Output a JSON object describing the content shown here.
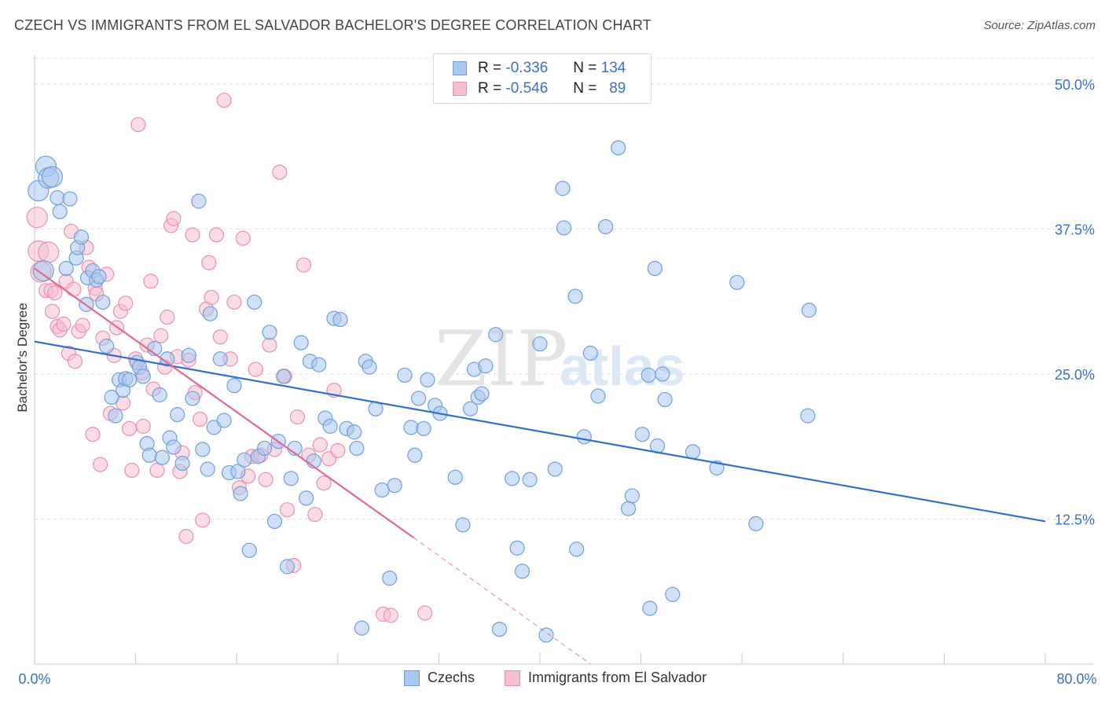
{
  "title": "CZECH VS IMMIGRANTS FROM EL SALVADOR BACHELOR'S DEGREE CORRELATION CHART",
  "source": "Source: ZipAtlas.com",
  "watermark": {
    "zip": "ZIP",
    "atlas": "atlas"
  },
  "legend": {
    "r_label": "R =",
    "n_label": "N =",
    "czechs": {
      "r": "-0.336",
      "n": "134"
    },
    "salvador": {
      "r": "-0.546",
      "n": "89"
    }
  },
  "bottom_legend": {
    "czechs": "Czechs",
    "salvador": "Immigrants from El Salvador"
  },
  "colors": {
    "blue_fill": "#a9c6ee",
    "blue_stroke": "#6f9fde",
    "blue_line": "#2f6fd0",
    "pink_fill": "#f6bfd0",
    "pink_stroke": "#ec8fae",
    "pink_line": "#e3688f",
    "axis_text": "#3b6fc9"
  },
  "chart_data": {
    "type": "scatter",
    "title": "CZECH VS IMMIGRANTS FROM EL SALVADOR BACHELOR'S DEGREE CORRELATION CHART",
    "xlabel": "",
    "ylabel": "Bachelor's Degree",
    "xlim": [
      0,
      80
    ],
    "ylim": [
      0,
      52.5
    ],
    "x_tick_labels": [
      "0.0%",
      "80.0%"
    ],
    "y_ticks": [
      12.5,
      25.0,
      37.5,
      50.0
    ],
    "y_tick_labels": [
      "12.5%",
      "25.0%",
      "37.5%",
      "50.0%"
    ],
    "grid": true,
    "series": [
      {
        "name": "Czechs",
        "trend": {
          "x0": 0,
          "y0": 27.8,
          "x1": 80,
          "y1": 12.3
        },
        "points": [
          [
            0.3,
            40.8
          ],
          [
            0.7,
            33.9
          ],
          [
            0.9,
            42.9
          ],
          [
            1.1,
            41.9
          ],
          [
            1.4,
            42.0
          ],
          [
            1.8,
            40.2
          ],
          [
            2.0,
            39.0
          ],
          [
            2.8,
            40.1
          ],
          [
            2.5,
            34.1
          ],
          [
            3.3,
            35.0
          ],
          [
            3.4,
            35.9
          ],
          [
            3.7,
            36.8
          ],
          [
            4.1,
            31.0
          ],
          [
            4.2,
            33.3
          ],
          [
            4.6,
            33.9
          ],
          [
            4.9,
            33.1
          ],
          [
            5.1,
            33.4
          ],
          [
            5.4,
            31.2
          ],
          [
            5.7,
            27.4
          ],
          [
            6.1,
            23.0
          ],
          [
            6.4,
            21.4
          ],
          [
            6.7,
            24.5
          ],
          [
            7.0,
            23.6
          ],
          [
            7.2,
            24.6
          ],
          [
            7.5,
            24.5
          ],
          [
            8.1,
            26.0
          ],
          [
            8.3,
            25.6
          ],
          [
            8.6,
            24.8
          ],
          [
            8.9,
            19.0
          ],
          [
            9.1,
            18.0
          ],
          [
            9.5,
            27.2
          ],
          [
            9.9,
            23.2
          ],
          [
            10.1,
            17.8
          ],
          [
            10.5,
            26.3
          ],
          [
            10.7,
            19.5
          ],
          [
            11.0,
            18.7
          ],
          [
            11.3,
            21.5
          ],
          [
            11.7,
            17.3
          ],
          [
            12.2,
            26.6
          ],
          [
            12.5,
            22.9
          ],
          [
            13.0,
            39.9
          ],
          [
            13.3,
            18.5
          ],
          [
            13.7,
            16.8
          ],
          [
            13.9,
            30.2
          ],
          [
            14.2,
            20.4
          ],
          [
            14.7,
            26.3
          ],
          [
            15.0,
            21.0
          ],
          [
            15.4,
            16.5
          ],
          [
            15.8,
            24.0
          ],
          [
            16.1,
            16.6
          ],
          [
            16.3,
            14.7
          ],
          [
            16.6,
            17.6
          ],
          [
            17.0,
            9.8
          ],
          [
            17.4,
            31.2
          ],
          [
            17.7,
            17.9
          ],
          [
            18.2,
            18.6
          ],
          [
            18.6,
            28.6
          ],
          [
            19.0,
            12.3
          ],
          [
            19.3,
            19.2
          ],
          [
            19.7,
            24.8
          ],
          [
            20.0,
            8.4
          ],
          [
            20.3,
            16.0
          ],
          [
            20.6,
            18.6
          ],
          [
            21.1,
            27.7
          ],
          [
            21.5,
            14.3
          ],
          [
            21.8,
            26.1
          ],
          [
            22.1,
            17.5
          ],
          [
            22.5,
            25.8
          ],
          [
            23.0,
            21.2
          ],
          [
            23.4,
            20.5
          ],
          [
            23.7,
            29.8
          ],
          [
            24.2,
            29.7
          ],
          [
            24.7,
            20.3
          ],
          [
            25.3,
            20.0
          ],
          [
            25.5,
            18.6
          ],
          [
            25.9,
            3.1
          ],
          [
            26.2,
            26.1
          ],
          [
            26.5,
            25.6
          ],
          [
            27.0,
            22.0
          ],
          [
            27.5,
            15.0
          ],
          [
            28.1,
            7.4
          ],
          [
            28.5,
            15.4
          ],
          [
            29.3,
            24.9
          ],
          [
            29.8,
            20.4
          ],
          [
            30.1,
            18.0
          ],
          [
            30.4,
            22.9
          ],
          [
            30.8,
            20.3
          ],
          [
            31.1,
            24.5
          ],
          [
            31.7,
            22.3
          ],
          [
            32.1,
            21.6
          ],
          [
            33.3,
            16.1
          ],
          [
            33.9,
            12.0
          ],
          [
            34.5,
            22.0
          ],
          [
            34.8,
            25.4
          ],
          [
            35.1,
            23.0
          ],
          [
            35.4,
            23.3
          ],
          [
            35.7,
            25.7
          ],
          [
            36.5,
            28.4
          ],
          [
            36.8,
            3.0
          ],
          [
            37.8,
            16.0
          ],
          [
            38.2,
            10.0
          ],
          [
            38.6,
            8.0
          ],
          [
            39.2,
            15.9
          ],
          [
            40.0,
            27.6
          ],
          [
            40.5,
            2.5
          ],
          [
            41.2,
            16.8
          ],
          [
            41.8,
            41.0
          ],
          [
            41.9,
            37.6
          ],
          [
            42.8,
            31.7
          ],
          [
            42.9,
            9.9
          ],
          [
            43.5,
            19.6
          ],
          [
            44.0,
            26.8
          ],
          [
            44.6,
            23.1
          ],
          [
            45.2,
            37.7
          ],
          [
            46.2,
            44.5
          ],
          [
            47.0,
            13.4
          ],
          [
            47.3,
            14.5
          ],
          [
            48.1,
            19.8
          ],
          [
            48.6,
            24.9
          ],
          [
            48.7,
            4.8
          ],
          [
            49.1,
            34.1
          ],
          [
            49.3,
            18.8
          ],
          [
            49.7,
            25.0
          ],
          [
            49.9,
            22.8
          ],
          [
            50.5,
            6.0
          ],
          [
            52.1,
            18.3
          ],
          [
            54.0,
            16.9
          ],
          [
            55.6,
            32.9
          ],
          [
            57.1,
            12.1
          ],
          [
            61.2,
            21.4
          ],
          [
            61.3,
            30.5
          ]
        ]
      },
      {
        "name": "Immigrants from El Salvador",
        "trend": {
          "x0": 0,
          "y0": 34.1,
          "x1": 30,
          "y1": 10.9,
          "dash_to_x": 44,
          "dash_to_y": 0
        },
        "points": [
          [
            0.2,
            38.5
          ],
          [
            0.3,
            35.6
          ],
          [
            0.5,
            33.8
          ],
          [
            0.9,
            32.2
          ],
          [
            1.1,
            35.5
          ],
          [
            1.3,
            32.2
          ],
          [
            1.4,
            30.4
          ],
          [
            1.6,
            32.0
          ],
          [
            1.8,
            29.1
          ],
          [
            2.0,
            28.8
          ],
          [
            2.3,
            29.3
          ],
          [
            2.5,
            33.0
          ],
          [
            2.7,
            26.8
          ],
          [
            2.9,
            37.3
          ],
          [
            3.1,
            32.3
          ],
          [
            3.2,
            26.1
          ],
          [
            3.5,
            28.7
          ],
          [
            3.8,
            29.2
          ],
          [
            4.1,
            35.9
          ],
          [
            4.3,
            34.2
          ],
          [
            4.6,
            19.8
          ],
          [
            4.8,
            32.4
          ],
          [
            4.9,
            31.9
          ],
          [
            5.2,
            17.2
          ],
          [
            5.4,
            28.1
          ],
          [
            5.7,
            33.6
          ],
          [
            6.0,
            21.6
          ],
          [
            6.3,
            26.6
          ],
          [
            6.5,
            29.0
          ],
          [
            6.8,
            30.4
          ],
          [
            7.0,
            22.5
          ],
          [
            7.2,
            31.1
          ],
          [
            7.5,
            20.3
          ],
          [
            7.7,
            16.7
          ],
          [
            8.0,
            26.3
          ],
          [
            8.2,
            46.5
          ],
          [
            8.5,
            25.1
          ],
          [
            8.6,
            20.5
          ],
          [
            8.9,
            27.5
          ],
          [
            9.2,
            33.0
          ],
          [
            9.4,
            23.7
          ],
          [
            9.7,
            16.7
          ],
          [
            10.0,
            28.3
          ],
          [
            10.3,
            25.6
          ],
          [
            10.5,
            29.9
          ],
          [
            10.8,
            37.8
          ],
          [
            11.0,
            38.4
          ],
          [
            11.3,
            26.5
          ],
          [
            11.5,
            16.6
          ],
          [
            11.7,
            18.2
          ],
          [
            12.0,
            11.0
          ],
          [
            12.2,
            26.2
          ],
          [
            12.5,
            37.0
          ],
          [
            12.7,
            23.4
          ],
          [
            13.1,
            21.1
          ],
          [
            13.3,
            12.4
          ],
          [
            13.6,
            30.6
          ],
          [
            13.8,
            34.6
          ],
          [
            14.0,
            31.6
          ],
          [
            14.4,
            37.0
          ],
          [
            14.7,
            28.2
          ],
          [
            15.0,
            48.6
          ],
          [
            15.5,
            26.3
          ],
          [
            15.8,
            31.2
          ],
          [
            16.2,
            15.2
          ],
          [
            16.5,
            36.7
          ],
          [
            16.9,
            16.2
          ],
          [
            17.2,
            17.9
          ],
          [
            17.5,
            25.4
          ],
          [
            17.9,
            18.0
          ],
          [
            18.3,
            15.9
          ],
          [
            18.6,
            27.5
          ],
          [
            19.0,
            18.5
          ],
          [
            19.4,
            42.4
          ],
          [
            19.8,
            24.8
          ],
          [
            20.0,
            13.3
          ],
          [
            20.5,
            8.5
          ],
          [
            20.8,
            21.3
          ],
          [
            21.3,
            34.4
          ],
          [
            21.7,
            18.0
          ],
          [
            22.2,
            12.9
          ],
          [
            22.6,
            18.9
          ],
          [
            22.9,
            15.6
          ],
          [
            23.3,
            17.7
          ],
          [
            23.7,
            23.6
          ],
          [
            24.0,
            18.4
          ],
          [
            27.6,
            4.3
          ],
          [
            28.2,
            4.2
          ],
          [
            30.9,
            4.4
          ]
        ]
      }
    ]
  }
}
